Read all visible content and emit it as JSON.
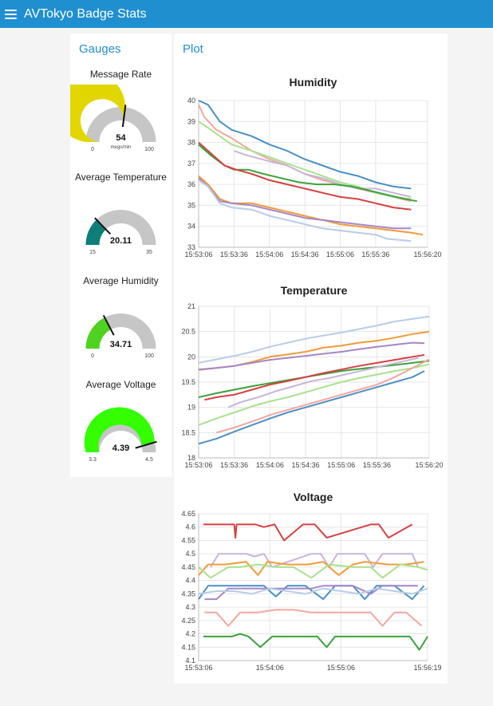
{
  "header": {
    "title": "AVTokyo Badge Stats",
    "menu_icon": "hamburger-menu-icon"
  },
  "gauges_group": {
    "title": "Gauges",
    "gauges": [
      {
        "id": "message-rate",
        "title": "Message Rate",
        "value": 54,
        "value_text": "54",
        "min": 0,
        "max": 100,
        "min_text": "0",
        "max_text": "100",
        "units": "megs/min",
        "color": "#e2d600"
      },
      {
        "id": "average-temperature",
        "title": "Average Temperature",
        "value": 20.11,
        "value_text": "20.11",
        "min": 15,
        "max": 35,
        "min_text": "15",
        "max_text": "35",
        "units": "",
        "color": "#0e7e78"
      },
      {
        "id": "average-humidity",
        "title": "Average Humidity",
        "value": 34.71,
        "value_text": "34.71",
        "min": 0,
        "max": 100,
        "min_text": "0",
        "max_text": "100",
        "units": "",
        "color": "#4ed41e"
      },
      {
        "id": "average-voltage",
        "title": "Average Voltage",
        "value": 4.39,
        "value_text": "4.39",
        "min": 3.3,
        "max": 4.5,
        "min_text": "3.3",
        "max_text": "4.5",
        "units": "",
        "color": "#33ff00"
      }
    ]
  },
  "plot_group": {
    "title": "Plot"
  },
  "chart_data": [
    {
      "type": "line",
      "title": "Humidity",
      "ylim": [
        33,
        40
      ],
      "yticks": [
        33,
        34,
        35,
        36,
        37,
        38,
        39,
        40
      ],
      "ytick_labels": [
        "33",
        "34",
        "35",
        "36",
        "37",
        "38",
        "39",
        "40"
      ],
      "xlim": [
        0,
        194
      ],
      "xticks": [
        0,
        30,
        60,
        90,
        120,
        150,
        194
      ],
      "xtick_labels": [
        "15:53:06",
        "15:53:36",
        "15:54:06",
        "15:54:36",
        "15:55:06",
        "15:55:36",
        "15:56:20"
      ],
      "grid": true,
      "series": [
        {
          "color": "#4a90c4",
          "x": [
            0,
            8,
            18,
            28,
            45,
            60,
            75,
            90,
            105,
            120,
            135,
            150,
            165,
            180
          ],
          "y": [
            40.0,
            39.8,
            39.0,
            38.6,
            38.3,
            37.9,
            37.6,
            37.2,
            36.9,
            36.6,
            36.4,
            36.1,
            35.9,
            35.8
          ]
        },
        {
          "color": "#f4a6a0",
          "x": [
            0,
            5,
            15,
            28,
            45,
            60,
            75,
            90,
            105,
            120,
            135,
            150,
            165,
            180
          ],
          "y": [
            39.8,
            39.2,
            38.6,
            38.2,
            37.6,
            37.2,
            36.9,
            36.5,
            36.2,
            36.0,
            35.8,
            35.6,
            35.4,
            35.2
          ]
        },
        {
          "color": "#a8e28c",
          "x": [
            0,
            8,
            18,
            28,
            45,
            60,
            75,
            90,
            105,
            120,
            135,
            150,
            165,
            180
          ],
          "y": [
            39.0,
            38.7,
            38.3,
            37.9,
            37.6,
            37.3,
            37.0,
            36.7,
            36.4,
            36.1,
            35.9,
            35.6,
            35.4,
            35.3
          ]
        },
        {
          "color": "#c8b4d8",
          "x": [
            30,
            40,
            60,
            75,
            90,
            105,
            120,
            135,
            150,
            165,
            180
          ],
          "y": [
            37.6,
            37.4,
            37.1,
            36.9,
            36.5,
            36.3,
            36.0,
            35.8,
            35.8,
            35.6,
            35.4
          ]
        },
        {
          "color": "#3aa23a",
          "x": [
            0,
            10,
            22,
            30,
            42,
            55,
            70,
            85,
            100,
            115,
            130,
            145,
            160,
            175,
            185
          ],
          "y": [
            37.9,
            37.4,
            36.9,
            36.7,
            36.7,
            36.5,
            36.3,
            36.1,
            36.0,
            36.0,
            35.9,
            35.7,
            35.5,
            35.3,
            35.2
          ]
        },
        {
          "color": "#d64040",
          "x": [
            0,
            10,
            22,
            32,
            45,
            60,
            75,
            90,
            105,
            120,
            135,
            150,
            165,
            180
          ],
          "y": [
            38.0,
            37.5,
            36.9,
            36.7,
            36.5,
            36.2,
            36.0,
            35.8,
            35.6,
            35.4,
            35.3,
            35.1,
            34.9,
            34.8
          ]
        },
        {
          "color": "#f29a38",
          "x": [
            0,
            8,
            18,
            28,
            45,
            60,
            75,
            90,
            105,
            120,
            135,
            150,
            165,
            180,
            190
          ],
          "y": [
            36.4,
            36.0,
            35.3,
            35.1,
            35.1,
            34.9,
            34.7,
            34.5,
            34.3,
            34.1,
            34.0,
            33.9,
            33.8,
            33.7,
            33.6
          ]
        },
        {
          "color": "#a586c8",
          "x": [
            0,
            8,
            18,
            28,
            45,
            60,
            75,
            90,
            105,
            120,
            135,
            150,
            165,
            180
          ],
          "y": [
            36.3,
            35.9,
            35.2,
            35.1,
            35.0,
            34.8,
            34.6,
            34.4,
            34.3,
            34.2,
            34.1,
            34.0,
            33.9,
            33.9
          ]
        },
        {
          "color": "#b8cce8",
          "x": [
            0,
            8,
            18,
            28,
            45,
            60,
            75,
            90,
            105,
            120,
            135,
            150,
            160,
            180
          ],
          "y": [
            36.2,
            35.9,
            35.1,
            34.9,
            34.8,
            34.5,
            34.3,
            34.1,
            33.9,
            33.8,
            33.7,
            33.6,
            33.4,
            33.3
          ]
        }
      ]
    },
    {
      "type": "line",
      "title": "Temperature",
      "ylim": [
        18,
        21
      ],
      "yticks": [
        18,
        18.5,
        19,
        19.5,
        20,
        20.5,
        21
      ],
      "ytick_labels": [
        "18",
        "18.5",
        "19",
        "19.5",
        "20",
        "20.5",
        "21"
      ],
      "xlim": [
        0,
        194
      ],
      "xticks": [
        0,
        30,
        60,
        90,
        120,
        150,
        194
      ],
      "xtick_labels": [
        "15:53:06",
        "15:53:36",
        "15:54:06",
        "15:54:36",
        "15:55:06",
        "15:55:36",
        "15:56:20"
      ],
      "grid": true,
      "series": [
        {
          "color": "#b8cce8",
          "x": [
            0,
            15,
            30,
            45,
            60,
            75,
            90,
            105,
            120,
            135,
            150,
            165,
            180,
            194
          ],
          "y": [
            19.88,
            19.95,
            20.02,
            20.1,
            20.2,
            20.28,
            20.36,
            20.42,
            20.48,
            20.55,
            20.62,
            20.7,
            20.75,
            20.8
          ]
        },
        {
          "color": "#f29a38",
          "x": [
            0,
            15,
            30,
            45,
            60,
            75,
            90,
            105,
            120,
            135,
            150,
            165,
            180,
            194
          ],
          "y": [
            19.74,
            19.78,
            19.82,
            19.9,
            20.0,
            20.05,
            20.1,
            20.18,
            20.22,
            20.28,
            20.32,
            20.38,
            20.45,
            20.5
          ]
        },
        {
          "color": "#a586c8",
          "x": [
            0,
            15,
            30,
            45,
            60,
            75,
            90,
            105,
            120,
            135,
            150,
            165,
            180,
            190
          ],
          "y": [
            19.75,
            19.78,
            19.82,
            19.88,
            19.94,
            19.98,
            20.02,
            20.06,
            20.1,
            20.15,
            20.2,
            20.24,
            20.28,
            20.27
          ]
        },
        {
          "color": "#3aa23a",
          "x": [
            0,
            15,
            30,
            45,
            60,
            75,
            90,
            105,
            120,
            135,
            150,
            165,
            180,
            194
          ],
          "y": [
            19.2,
            19.28,
            19.35,
            19.42,
            19.48,
            19.54,
            19.6,
            19.66,
            19.72,
            19.76,
            19.8,
            19.84,
            19.88,
            19.92
          ]
        },
        {
          "color": "#d64040",
          "x": [
            5,
            15,
            30,
            45,
            60,
            75,
            90,
            105,
            120,
            135,
            150,
            165,
            180,
            190
          ],
          "y": [
            19.15,
            19.2,
            19.25,
            19.35,
            19.45,
            19.52,
            19.6,
            19.68,
            19.75,
            19.82,
            19.88,
            19.94,
            20.0,
            20.04
          ]
        },
        {
          "color": "#c8b4d8",
          "x": [
            25,
            35,
            50,
            65,
            80,
            95,
            110,
            125,
            140,
            155,
            170,
            185
          ],
          "y": [
            19.0,
            19.1,
            19.2,
            19.32,
            19.42,
            19.52,
            19.58,
            19.66,
            19.74,
            19.82,
            19.9,
            19.98
          ]
        },
        {
          "color": "#a8e28c",
          "x": [
            0,
            15,
            30,
            45,
            60,
            75,
            90,
            105,
            120,
            135,
            150,
            165,
            180,
            194
          ],
          "y": [
            18.65,
            18.78,
            18.9,
            19.02,
            19.12,
            19.2,
            19.3,
            19.4,
            19.5,
            19.58,
            19.65,
            19.72,
            19.78,
            19.85
          ]
        },
        {
          "color": "#f4a6a0",
          "x": [
            15,
            30,
            45,
            60,
            75,
            90,
            105,
            120,
            135,
            150,
            165,
            180,
            194
          ],
          "y": [
            18.5,
            18.6,
            18.72,
            18.85,
            18.95,
            19.05,
            19.15,
            19.25,
            19.35,
            19.45,
            19.6,
            19.78,
            19.95
          ]
        },
        {
          "color": "#4a90c4",
          "x": [
            0,
            15,
            30,
            45,
            60,
            75,
            90,
            105,
            120,
            135,
            150,
            165,
            180,
            190
          ],
          "y": [
            18.28,
            18.38,
            18.52,
            18.65,
            18.78,
            18.9,
            19.0,
            19.1,
            19.2,
            19.3,
            19.4,
            19.5,
            19.6,
            19.72
          ]
        }
      ]
    },
    {
      "type": "line",
      "title": "Voltage",
      "ylim": [
        4.1,
        4.65
      ],
      "yticks": [
        4.1,
        4.15,
        4.2,
        4.25,
        4.3,
        4.35,
        4.4,
        4.45,
        4.5,
        4.55,
        4.6,
        4.65
      ],
      "ytick_labels": [
        "4.1",
        "4.15",
        "4.2",
        "4.25",
        "4.3",
        "4.35",
        "4.4",
        "4.45",
        "4.5",
        "4.55",
        "4.6",
        "4.65"
      ],
      "xlim": [
        0,
        193
      ],
      "xticks": [
        0,
        60,
        120,
        193
      ],
      "xtick_labels": [
        "15:53:06",
        "15:54:06",
        "15:55:06",
        "15:56:19"
      ],
      "grid": true,
      "series": [
        {
          "color": "#d64040",
          "x": [
            4,
            30,
            31,
            32,
            48,
            55,
            64,
            72,
            88,
            98,
            108,
            145,
            152,
            160,
            180
          ],
          "y": [
            4.61,
            4.61,
            4.56,
            4.61,
            4.61,
            4.6,
            4.61,
            4.55,
            4.61,
            4.61,
            4.56,
            4.61,
            4.61,
            4.56,
            4.61
          ]
        },
        {
          "color": "#c8b4d8",
          "x": [
            10,
            17,
            40,
            47,
            55,
            62,
            95,
            103,
            110,
            117,
            140,
            147,
            155,
            162,
            180,
            185
          ],
          "y": [
            4.45,
            4.5,
            4.5,
            4.49,
            4.5,
            4.45,
            4.5,
            4.5,
            4.45,
            4.5,
            4.5,
            4.45,
            4.5,
            4.5,
            4.5,
            4.45
          ]
        },
        {
          "color": "#f29a38",
          "x": [
            0,
            8,
            22,
            40,
            50,
            58,
            75,
            92,
            105,
            118,
            130,
            140,
            160,
            175,
            190
          ],
          "y": [
            4.42,
            4.46,
            4.46,
            4.47,
            4.42,
            4.47,
            4.46,
            4.46,
            4.47,
            4.42,
            4.46,
            4.47,
            4.46,
            4.46,
            4.47
          ]
        },
        {
          "color": "#a8e28c",
          "x": [
            0,
            10,
            25,
            35,
            50,
            65,
            80,
            95,
            110,
            130,
            145,
            155,
            170,
            185,
            193
          ],
          "y": [
            4.45,
            4.41,
            4.45,
            4.45,
            4.46,
            4.45,
            4.45,
            4.41,
            4.46,
            4.45,
            4.45,
            4.41,
            4.46,
            4.45,
            4.44
          ]
        },
        {
          "color": "#4a90c4",
          "x": [
            0,
            8,
            30,
            55,
            65,
            75,
            90,
            105,
            115,
            130,
            140,
            150,
            165,
            180,
            190
          ],
          "y": [
            4.33,
            4.38,
            4.38,
            4.38,
            4.34,
            4.38,
            4.38,
            4.33,
            4.38,
            4.38,
            4.33,
            4.38,
            4.38,
            4.33,
            4.38
          ]
        },
        {
          "color": "#a586c8",
          "x": [
            5,
            15,
            25,
            40,
            60,
            75,
            95,
            105,
            115,
            130,
            145,
            155,
            170,
            185
          ],
          "y": [
            4.33,
            4.33,
            4.37,
            4.37,
            4.37,
            4.37,
            4.37,
            4.38,
            4.38,
            4.38,
            4.35,
            4.38,
            4.38,
            4.38
          ]
        },
        {
          "color": "#b8cce8",
          "x": [
            0,
            15,
            30,
            45,
            60,
            75,
            90,
            105,
            120,
            135,
            150,
            165,
            180,
            193
          ],
          "y": [
            4.35,
            4.36,
            4.36,
            4.35,
            4.37,
            4.36,
            4.35,
            4.37,
            4.36,
            4.35,
            4.37,
            4.36,
            4.35,
            4.37
          ]
        },
        {
          "color": "#f4a6a0",
          "x": [
            5,
            15,
            25,
            35,
            50,
            65,
            80,
            95,
            115,
            130,
            145,
            155,
            165,
            175,
            188
          ],
          "y": [
            4.28,
            4.28,
            4.23,
            4.28,
            4.28,
            4.29,
            4.29,
            4.28,
            4.28,
            4.28,
            4.28,
            4.23,
            4.28,
            4.28,
            4.23
          ]
        },
        {
          "color": "#3aa23a",
          "x": [
            4,
            28,
            35,
            42,
            52,
            62,
            100,
            108,
            115,
            170,
            178,
            186,
            193
          ],
          "y": [
            4.19,
            4.19,
            4.2,
            4.19,
            4.15,
            4.19,
            4.19,
            4.15,
            4.19,
            4.19,
            4.19,
            4.14,
            4.19
          ]
        }
      ]
    }
  ]
}
